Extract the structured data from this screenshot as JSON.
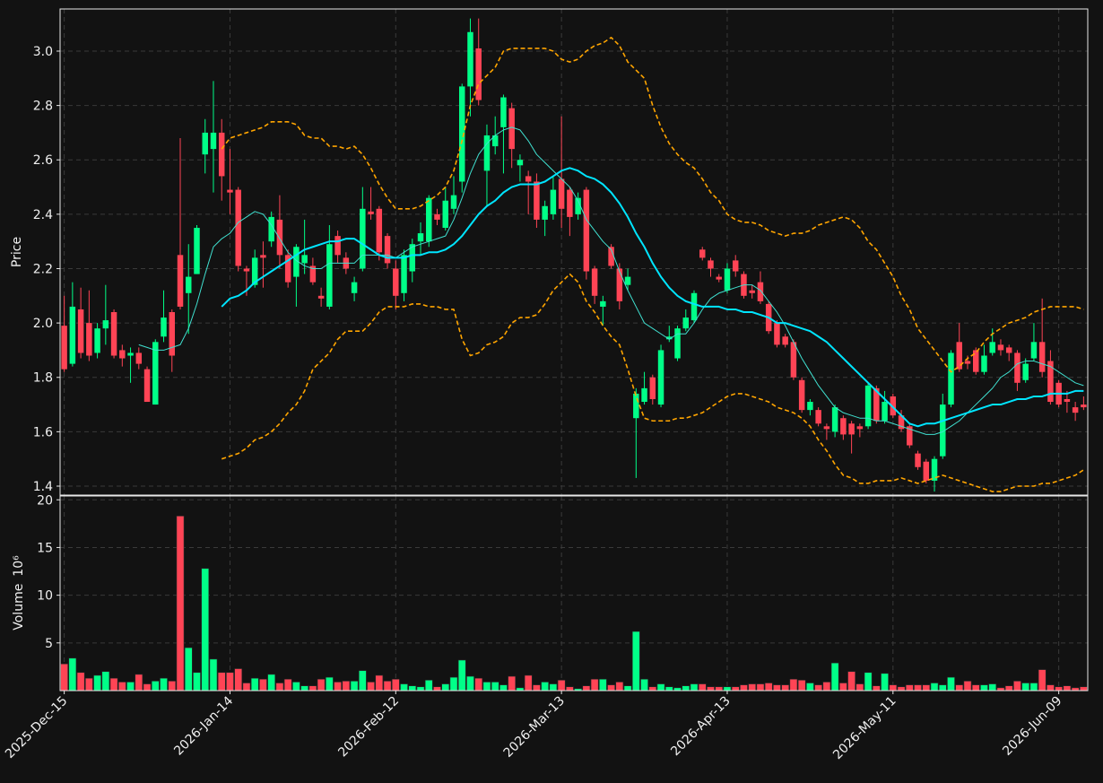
{
  "chart_data": {
    "type": "candlestick",
    "ylabel": "Price",
    "ylim": [
      1.367,
      3.155
    ],
    "yticks": [
      1.4,
      1.6,
      1.8,
      {
        "value": 2,
        "label": "2.0"
      },
      2.2,
      2.4,
      2.6,
      2.8,
      {
        "value": 3,
        "label": "3.0"
      }
    ],
    "grid": true,
    "up_color": "#00ff88",
    "down_color": "#ff4455",
    "categories": [
      "2025-Dec-15",
      null,
      null,
      null,
      null,
      null,
      null,
      null,
      null,
      null,
      null,
      null,
      null,
      null,
      null,
      null,
      null,
      null,
      null,
      null,
      "2026-Jan-14",
      null,
      null,
      null,
      null,
      null,
      null,
      null,
      null,
      null,
      null,
      null,
      null,
      null,
      null,
      null,
      null,
      null,
      null,
      null,
      "2026-Feb-12",
      null,
      null,
      null,
      null,
      null,
      null,
      null,
      null,
      null,
      null,
      null,
      null,
      null,
      null,
      null,
      null,
      null,
      null,
      null,
      "2026-Mar-13",
      null,
      null,
      null,
      null,
      null,
      null,
      null,
      null,
      null,
      null,
      null,
      null,
      null,
      null,
      null,
      null,
      null,
      null,
      null,
      "2026-Apr-13",
      null,
      null,
      null,
      null,
      null,
      null,
      null,
      null,
      null,
      null,
      null,
      null,
      null,
      null,
      null,
      null,
      null,
      null,
      null,
      "2026-May-11",
      null,
      null,
      null,
      null,
      null,
      null,
      null,
      null,
      null,
      null,
      null,
      null,
      null,
      null,
      null,
      null,
      null,
      null,
      null,
      "2026-Jun-09",
      null,
      null,
      null
    ],
    "open": [
      1.99,
      1.85,
      2.05,
      2.0,
      1.89,
      1.98,
      2.04,
      1.9,
      1.88,
      1.89,
      1.83,
      1.7,
      1.95,
      2.04,
      2.25,
      2.11,
      2.18,
      2.62,
      2.64,
      2.7,
      2.49,
      2.49,
      2.2,
      2.14,
      2.25,
      2.3,
      2.38,
      2.25,
      2.17,
      2.22,
      2.21,
      2.1,
      2.06,
      2.32,
      2.24,
      2.11,
      2.2,
      2.41,
      2.42,
      2.32,
      2.2,
      2.11,
      2.19,
      2.3,
      2.3,
      2.4,
      2.35,
      2.42,
      2.52,
      2.87,
      3.01,
      2.56,
      2.65,
      2.72,
      2.79,
      2.58,
      2.54,
      2.52,
      2.38,
      2.4,
      2.53,
      2.49,
      2.4,
      2.49,
      2.2,
      2.06,
      2.28,
      2.2,
      2.14,
      1.65,
      1.71,
      1.8,
      1.7,
      1.94,
      1.87,
      1.98,
      2.01,
      2.27,
      2.23,
      2.17,
      2.12,
      2.23,
      2.18,
      2.12,
      2.15,
      2.07,
      2.0,
      1.95,
      1.93,
      1.79,
      1.68,
      1.68,
      1.62,
      1.6,
      1.65,
      1.63,
      1.62,
      1.62,
      1.76,
      1.64,
      1.73,
      1.66,
      1.62,
      1.52,
      1.49,
      1.42,
      1.51,
      1.7,
      1.93,
      1.86,
      1.9,
      1.82,
      1.89,
      1.92,
      1.91,
      1.89,
      1.79,
      1.87,
      1.93,
      1.86,
      1.78,
      1.72,
      1.69,
      1.7
    ],
    "high": [
      2.1,
      2.15,
      2.13,
      2.12,
      2.0,
      2.14,
      2.05,
      1.92,
      1.91,
      1.91,
      1.84,
      1.94,
      2.12,
      2.05,
      2.68,
      2.29,
      2.36,
      2.75,
      2.89,
      2.75,
      2.64,
      2.5,
      2.21,
      2.27,
      2.3,
      2.41,
      2.47,
      2.27,
      2.29,
      2.38,
      2.24,
      2.13,
      2.36,
      2.34,
      2.26,
      2.17,
      2.5,
      2.5,
      2.43,
      2.33,
      2.23,
      2.27,
      2.31,
      2.37,
      2.47,
      2.42,
      2.5,
      2.54,
      2.88,
      3.12,
      3.12,
      2.73,
      2.76,
      2.84,
      2.81,
      2.62,
      2.56,
      2.55,
      2.45,
      2.54,
      2.76,
      2.5,
      2.48,
      2.5,
      2.21,
      2.1,
      2.29,
      2.22,
      2.2,
      1.76,
      1.82,
      1.81,
      1.92,
      1.99,
      1.99,
      2.05,
      2.12,
      2.28,
      2.24,
      2.18,
      2.22,
      2.25,
      2.19,
      2.14,
      2.19,
      2.08,
      2.01,
      1.96,
      1.94,
      1.8,
      1.72,
      1.69,
      1.63,
      1.7,
      1.66,
      1.64,
      1.63,
      1.78,
      1.77,
      1.75,
      1.74,
      1.68,
      1.63,
      1.53,
      1.5,
      1.51,
      1.74,
      1.9,
      2.0,
      1.88,
      1.91,
      1.92,
      1.98,
      1.94,
      1.92,
      1.9,
      1.87,
      2.0,
      2.09,
      1.9,
      1.79,
      1.75,
      1.71,
      1.73
    ],
    "low": [
      1.82,
      1.84,
      1.87,
      1.86,
      1.87,
      1.92,
      1.87,
      1.84,
      1.78,
      1.83,
      1.71,
      1.7,
      1.93,
      1.82,
      2.05,
      1.96,
      2.18,
      2.55,
      2.48,
      2.45,
      2.4,
      2.19,
      2.1,
      2.13,
      2.13,
      2.28,
      2.2,
      2.13,
      2.06,
      2.18,
      2.14,
      2.06,
      2.05,
      2.22,
      2.18,
      2.08,
      2.19,
      2.38,
      2.23,
      2.2,
      2.05,
      2.08,
      2.15,
      2.25,
      2.28,
      2.36,
      2.34,
      2.4,
      2.48,
      2.76,
      2.8,
      2.43,
      2.62,
      2.55,
      2.57,
      2.52,
      2.4,
      2.35,
      2.32,
      2.38,
      2.35,
      2.32,
      2.38,
      2.16,
      2.07,
      1.99,
      2.2,
      2.05,
      2.12,
      1.43,
      1.7,
      1.7,
      1.69,
      1.93,
      1.86,
      1.97,
      2.0,
      2.23,
      2.17,
      2.15,
      2.11,
      2.17,
      2.09,
      2.09,
      2.07,
      1.96,
      1.91,
      1.91,
      1.79,
      1.67,
      1.66,
      1.62,
      1.57,
      1.58,
      1.57,
      1.52,
      1.58,
      1.61,
      1.63,
      1.63,
      1.65,
      1.6,
      1.54,
      1.46,
      1.41,
      1.38,
      1.5,
      1.69,
      1.82,
      1.83,
      1.81,
      1.81,
      1.88,
      1.88,
      1.86,
      1.75,
      1.78,
      1.86,
      1.8,
      1.7,
      1.69,
      1.67,
      1.64,
      1.68
    ],
    "close": [
      1.83,
      2.06,
      1.89,
      1.88,
      1.98,
      2.01,
      1.88,
      1.87,
      1.89,
      1.85,
      1.71,
      1.93,
      2.02,
      1.88,
      2.06,
      2.17,
      2.35,
      2.7,
      2.7,
      2.54,
      2.48,
      2.21,
      2.19,
      2.24,
      2.24,
      2.39,
      2.25,
      2.15,
      2.28,
      2.25,
      2.15,
      2.09,
      2.29,
      2.25,
      2.2,
      2.15,
      2.42,
      2.4,
      2.26,
      2.22,
      2.1,
      2.25,
      2.29,
      2.33,
      2.46,
      2.38,
      2.45,
      2.47,
      2.87,
      3.07,
      2.82,
      2.69,
      2.69,
      2.83,
      2.64,
      2.6,
      2.52,
      2.38,
      2.43,
      2.49,
      2.42,
      2.39,
      2.46,
      2.19,
      2.1,
      2.08,
      2.21,
      2.08,
      2.17,
      1.74,
      1.76,
      1.72,
      1.9,
      1.95,
      1.98,
      2.02,
      2.11,
      2.24,
      2.2,
      2.16,
      2.2,
      2.19,
      2.1,
      2.11,
      2.08,
      1.97,
      1.92,
      1.92,
      1.8,
      1.68,
      1.71,
      1.63,
      1.61,
      1.69,
      1.59,
      1.59,
      1.61,
      1.77,
      1.64,
      1.71,
      1.66,
      1.61,
      1.55,
      1.47,
      1.42,
      1.5,
      1.7,
      1.89,
      1.83,
      1.85,
      1.82,
      1.88,
      1.93,
      1.9,
      1.89,
      1.78,
      1.85,
      1.93,
      1.82,
      1.71,
      1.7,
      1.71,
      1.67,
      1.69
    ],
    "overlays": [
      {
        "color": "#40e0d0",
        "values": [
          null,
          null,
          null,
          null,
          null,
          null,
          null,
          null,
          null,
          1.92,
          1.91,
          1.9,
          1.9,
          1.91,
          1.92,
          1.98,
          2.07,
          2.18,
          2.28,
          2.31,
          2.33,
          2.37,
          2.39,
          2.41,
          2.4,
          2.36,
          2.31,
          2.26,
          2.23,
          2.21,
          2.2,
          2.2,
          2.22,
          2.22,
          2.22,
          2.22,
          2.25,
          2.25,
          2.25,
          2.25,
          2.24,
          2.26,
          2.28,
          2.29,
          2.3,
          2.31,
          2.32,
          2.38,
          2.46,
          2.55,
          2.62,
          2.66,
          2.69,
          2.71,
          2.72,
          2.71,
          2.67,
          2.62,
          2.59,
          2.56,
          2.53,
          2.5,
          2.45,
          2.38,
          2.34,
          2.3,
          2.27,
          2.19,
          2.12,
          2.06,
          2.0,
          1.98,
          1.96,
          1.94,
          1.96,
          1.96,
          2.0,
          2.05,
          2.09,
          2.11,
          2.12,
          2.13,
          2.14,
          2.14,
          2.12,
          2.08,
          2.04,
          1.99,
          1.93,
          1.87,
          1.82,
          1.77,
          1.73,
          1.69,
          1.67,
          1.66,
          1.65,
          1.65,
          1.64,
          1.64,
          1.63,
          1.62,
          1.61,
          1.6,
          1.59,
          1.59,
          1.6,
          1.62,
          1.64,
          1.67,
          1.7,
          1.73,
          1.76,
          1.8,
          1.82,
          1.85,
          1.86,
          1.86,
          1.85,
          1.84,
          1.82,
          1.8,
          1.78,
          1.77
        ]
      },
      {
        "color": "#00e5ff",
        "values": [
          null,
          null,
          null,
          null,
          null,
          null,
          null,
          null,
          null,
          null,
          null,
          null,
          null,
          null,
          null,
          null,
          null,
          null,
          null,
          2.06,
          2.09,
          2.1,
          2.12,
          2.15,
          2.17,
          2.19,
          2.21,
          2.23,
          2.25,
          2.27,
          2.28,
          2.29,
          2.3,
          2.3,
          2.31,
          2.31,
          2.29,
          2.27,
          2.25,
          2.24,
          2.24,
          2.24,
          2.25,
          2.25,
          2.26,
          2.26,
          2.27,
          2.29,
          2.32,
          2.36,
          2.4,
          2.43,
          2.45,
          2.48,
          2.5,
          2.51,
          2.51,
          2.51,
          2.52,
          2.54,
          2.56,
          2.57,
          2.56,
          2.54,
          2.53,
          2.51,
          2.48,
          2.44,
          2.39,
          2.33,
          2.28,
          2.22,
          2.17,
          2.13,
          2.1,
          2.08,
          2.07,
          2.06,
          2.06,
          2.06,
          2.05,
          2.05,
          2.04,
          2.04,
          2.03,
          2.02,
          2.0,
          2.0,
          1.99,
          1.98,
          1.97,
          1.95,
          1.93,
          1.9,
          1.87,
          1.84,
          1.81,
          1.78,
          1.75,
          1.72,
          1.69,
          1.66,
          1.63,
          1.62,
          1.63,
          1.63,
          1.64,
          1.65,
          1.66,
          1.67,
          1.68,
          1.69,
          1.7,
          1.7,
          1.71,
          1.72,
          1.72,
          1.73,
          1.73,
          1.74,
          1.74,
          1.74,
          1.75,
          1.75
        ]
      },
      {
        "color": "#ffa500",
        "dashed": true,
        "values": [
          null,
          null,
          null,
          null,
          null,
          null,
          null,
          null,
          null,
          null,
          null,
          null,
          null,
          null,
          null,
          null,
          null,
          null,
          null,
          2.64,
          2.68,
          2.69,
          2.7,
          2.71,
          2.72,
          2.74,
          2.74,
          2.74,
          2.73,
          2.69,
          2.68,
          2.68,
          2.65,
          2.65,
          2.64,
          2.65,
          2.62,
          2.57,
          2.51,
          2.46,
          2.42,
          2.42,
          2.42,
          2.43,
          2.45,
          2.47,
          2.5,
          2.56,
          2.67,
          2.8,
          2.88,
          2.91,
          2.94,
          3.0,
          3.01,
          3.01,
          3.01,
          3.01,
          3.01,
          3.0,
          2.97,
          2.96,
          2.97,
          3.0,
          3.02,
          3.03,
          3.05,
          3.02,
          2.96,
          2.93,
          2.9,
          2.8,
          2.72,
          2.66,
          2.62,
          2.59,
          2.57,
          2.53,
          2.48,
          2.45,
          2.4,
          2.38,
          2.37,
          2.37,
          2.36,
          2.34,
          2.33,
          2.32,
          2.33,
          2.33,
          2.34,
          2.36,
          2.37,
          2.38,
          2.39,
          2.38,
          2.35,
          2.3,
          2.27,
          2.22,
          2.17,
          2.1,
          2.05,
          1.98,
          1.94,
          1.9,
          1.86,
          1.82,
          1.84,
          1.87,
          1.89,
          1.93,
          1.96,
          1.98,
          2.0,
          2.01,
          2.02,
          2.04,
          2.05,
          2.06,
          2.06,
          2.06,
          2.06,
          2.05
        ]
      },
      {
        "color": "#ffa500",
        "dashed": true,
        "values": [
          null,
          null,
          null,
          null,
          null,
          null,
          null,
          null,
          null,
          null,
          null,
          null,
          null,
          null,
          null,
          null,
          null,
          null,
          null,
          1.5,
          1.51,
          1.52,
          1.54,
          1.57,
          1.58,
          1.6,
          1.63,
          1.67,
          1.7,
          1.75,
          1.83,
          1.86,
          1.89,
          1.94,
          1.97,
          1.97,
          1.97,
          2.0,
          2.04,
          2.06,
          2.06,
          2.06,
          2.07,
          2.07,
          2.06,
          2.06,
          2.05,
          2.05,
          1.94,
          1.88,
          1.89,
          1.92,
          1.93,
          1.95,
          2.0,
          2.02,
          2.02,
          2.03,
          2.07,
          2.12,
          2.15,
          2.18,
          2.15,
          2.08,
          2.04,
          1.99,
          1.95,
          1.92,
          1.83,
          1.73,
          1.65,
          1.64,
          1.64,
          1.64,
          1.65,
          1.65,
          1.66,
          1.67,
          1.69,
          1.71,
          1.73,
          1.74,
          1.74,
          1.73,
          1.72,
          1.71,
          1.69,
          1.68,
          1.67,
          1.65,
          1.62,
          1.57,
          1.53,
          1.48,
          1.44,
          1.43,
          1.41,
          1.41,
          1.42,
          1.42,
          1.42,
          1.43,
          1.42,
          1.41,
          1.42,
          1.43,
          1.44,
          1.43,
          1.42,
          1.41,
          1.4,
          1.39,
          1.38,
          1.38,
          1.39,
          1.4,
          1.4,
          1.4,
          1.41,
          1.41,
          1.42,
          1.43,
          1.44,
          1.46
        ]
      }
    ],
    "volume": {
      "ylabel": "Volume",
      "scale_label": "10⁶",
      "ylim": [
        0,
        20.4
      ],
      "yticks": [
        5,
        10,
        15,
        20
      ],
      "values": [
        2.8,
        3.4,
        1.9,
        1.3,
        1.6,
        2.0,
        1.3,
        0.9,
        0.9,
        1.7,
        0.7,
        1.0,
        1.3,
        1.0,
        18.3,
        4.5,
        1.9,
        12.8,
        3.3,
        1.9,
        1.9,
        2.3,
        0.8,
        1.3,
        1.2,
        1.7,
        0.8,
        1.2,
        0.9,
        0.5,
        0.5,
        1.2,
        1.4,
        0.9,
        1.0,
        1.0,
        2.1,
        0.9,
        1.6,
        1.0,
        1.2,
        0.7,
        0.5,
        0.4,
        1.1,
        0.4,
        0.7,
        1.4,
        3.2,
        1.5,
        1.3,
        0.9,
        0.9,
        0.6,
        1.5,
        0.3,
        1.6,
        0.6,
        0.9,
        0.7,
        1.1,
        0.4,
        0.2,
        0.5,
        1.2,
        1.2,
        0.6,
        0.9,
        0.5,
        6.2,
        1.2,
        0.4,
        0.7,
        0.4,
        0.3,
        0.5,
        0.7,
        0.7,
        0.4,
        0.4,
        0.4,
        0.4,
        0.6,
        0.7,
        0.7,
        0.8,
        0.6,
        0.6,
        1.2,
        1.1,
        0.8,
        0.6,
        0.9,
        2.9,
        0.8,
        2.0,
        0.7,
        1.9,
        0.5,
        1.8,
        0.6,
        0.4,
        0.6,
        0.6,
        0.6,
        0.8,
        0.6,
        1.4,
        0.6,
        1.0,
        0.6,
        0.6,
        0.7,
        0.3,
        0.5,
        1.0,
        0.8,
        0.8,
        2.2,
        0.6,
        0.4,
        0.5,
        0.3,
        0.4
      ]
    }
  }
}
